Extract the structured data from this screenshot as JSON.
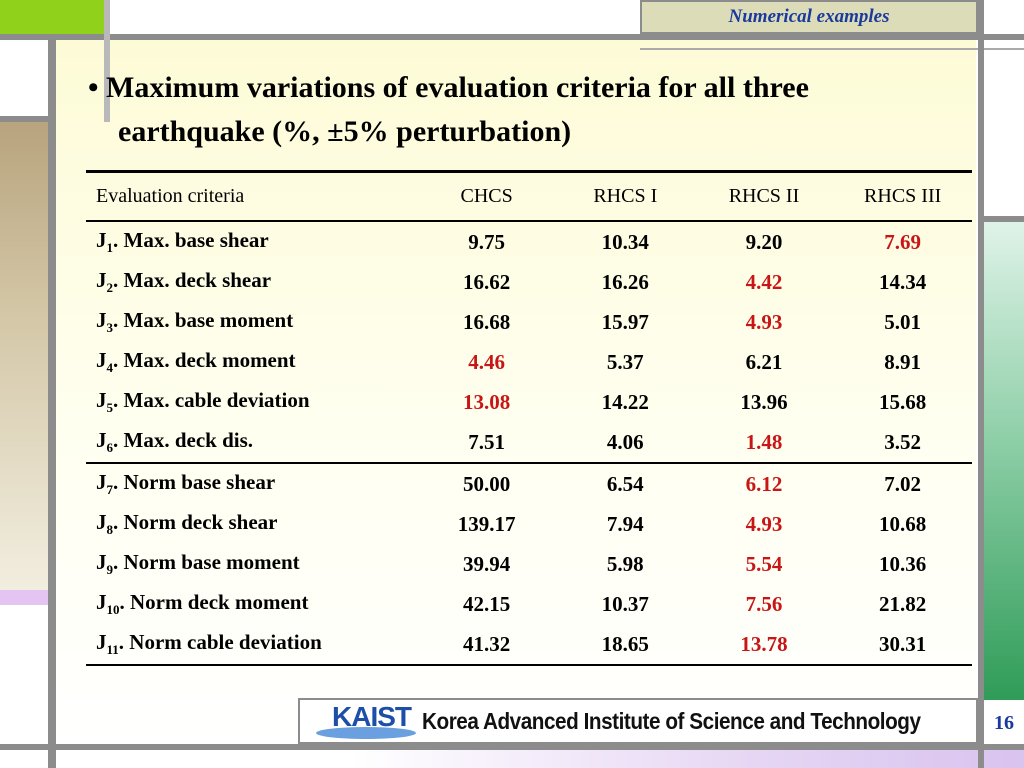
{
  "header": {
    "title": "Numerical examples"
  },
  "title": {
    "line1": "• Maximum variations of evaluation criteria for all three",
    "line2": "earthquake (%, ±5% perturbation)"
  },
  "table": {
    "headers": [
      "Evaluation criteria",
      "CHCS",
      "RHCS I",
      "RHCS II",
      "RHCS III"
    ],
    "rows": [
      {
        "sub": "1",
        "label": ". Max. base shear",
        "values": [
          "9.75",
          "10.34",
          "9.20",
          "7.69"
        ],
        "highlight": 3
      },
      {
        "sub": "2",
        "label": ". Max. deck shear",
        "values": [
          "16.62",
          "16.26",
          "4.42",
          "14.34"
        ],
        "highlight": 2
      },
      {
        "sub": "3",
        "label": ". Max. base moment",
        "values": [
          "16.68",
          "15.97",
          "4.93",
          "5.01"
        ],
        "highlight": 2
      },
      {
        "sub": "4",
        "label": ". Max. deck moment",
        "values": [
          "4.46",
          "5.37",
          "6.21",
          "8.91"
        ],
        "highlight": 0
      },
      {
        "sub": "5",
        "label": ". Max. cable deviation",
        "values": [
          "13.08",
          "14.22",
          "13.96",
          "15.68"
        ],
        "highlight": 0
      },
      {
        "sub": "6",
        "label": ". Max. deck dis.",
        "values": [
          "7.51",
          "4.06",
          "1.48",
          "3.52"
        ],
        "highlight": 2
      },
      {
        "sub": "7",
        "label": ". Norm base shear",
        "values": [
          "50.00",
          "6.54",
          "6.12",
          "7.02"
        ],
        "highlight": 2
      },
      {
        "sub": "8",
        "label": ". Norm deck shear",
        "values": [
          "139.17",
          "7.94",
          "4.93",
          "10.68"
        ],
        "highlight": 2
      },
      {
        "sub": "9",
        "label": ". Norm base moment",
        "values": [
          "39.94",
          "5.98",
          "5.54",
          "10.36"
        ],
        "highlight": 2
      },
      {
        "sub": "10",
        "label": ". Norm deck moment",
        "values": [
          "42.15",
          "10.37",
          "7.56",
          "21.82"
        ],
        "highlight": 2
      },
      {
        "sub": "11",
        "label": ". Norm cable deviation",
        "values": [
          "41.32",
          "18.65",
          "13.78",
          "30.31"
        ],
        "highlight": 2
      }
    ]
  },
  "footer": {
    "logo_text": "KAIST",
    "institution": "Korea Advanced Institute of Science and Technology",
    "page_number": "16"
  },
  "colors": {
    "highlight": "#c81616",
    "header_text": "#1a3a9c",
    "accent_green": "#8fd11b"
  }
}
